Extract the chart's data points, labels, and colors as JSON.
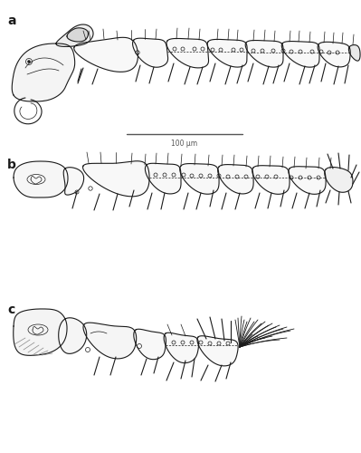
{
  "background_color": "#ffffff",
  "label_a": "a",
  "label_b": "b",
  "label_c": "c",
  "scalebar_text": "100 μm",
  "fig_width": 3.99,
  "fig_height": 5.0,
  "dpi": 100,
  "lc": "#1a1a1a",
  "lc_light": "#999999"
}
